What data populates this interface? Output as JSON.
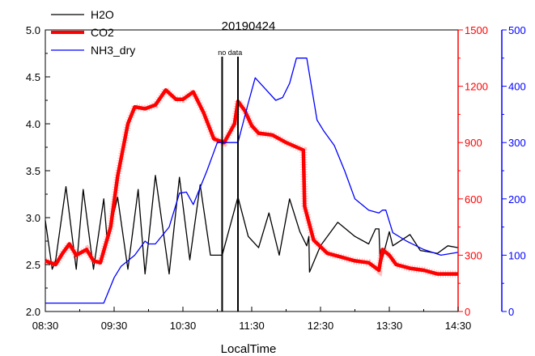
{
  "chart_data": {
    "type": "line",
    "title": "20190424",
    "xlabel": "LocalTime",
    "x_ticks": [
      "08:30",
      "09:30",
      "10:30",
      "11:30",
      "12:30",
      "13:30",
      "14:30"
    ],
    "x_tick_hours": [
      8.5,
      9.5,
      10.5,
      11.5,
      12.5,
      13.5,
      14.5
    ],
    "xlim_hours": [
      8.5,
      14.5
    ],
    "left_axis": {
      "ylim": [
        2.0,
        5.0
      ],
      "ticks": [
        "2.0",
        "2.5",
        "3.0",
        "3.5",
        "4.0",
        "4.5",
        "5.0"
      ],
      "color": "#000000"
    },
    "right_axis_1": {
      "ylim": [
        0,
        1500
      ],
      "ticks": [
        "0",
        "300",
        "600",
        "900",
        "1200",
        "1500"
      ],
      "color": "#ff0000"
    },
    "right_axis_2": {
      "ylim": [
        0,
        500
      ],
      "ticks": [
        "0",
        "100",
        "200",
        "300",
        "400",
        "500"
      ],
      "color": "#0000ff"
    },
    "annotation": {
      "text": "no data",
      "x_hours": [
        11.07,
        11.3
      ]
    },
    "legend_position": "top-left",
    "series": [
      {
        "name": "H2O",
        "axis": "left",
        "color": "#000000",
        "x": [
          8.5,
          8.6,
          8.65,
          8.8,
          8.95,
          9.05,
          9.2,
          9.35,
          9.4,
          9.55,
          9.7,
          9.85,
          9.95,
          10.1,
          10.3,
          10.45,
          10.6,
          10.75,
          10.9,
          11.07,
          11.3,
          11.45,
          11.6,
          11.75,
          11.9,
          12.05,
          12.2,
          12.3,
          12.33,
          12.34,
          12.5,
          12.75,
          13.0,
          13.2,
          13.3,
          13.35,
          13.37,
          13.5,
          13.55,
          13.8,
          13.95,
          14.2,
          14.35,
          14.5
        ],
        "y": [
          2.97,
          2.45,
          2.55,
          3.33,
          2.45,
          3.3,
          2.45,
          3.2,
          2.75,
          3.22,
          2.45,
          3.3,
          2.4,
          3.45,
          2.4,
          3.43,
          2.55,
          3.35,
          2.6,
          2.6,
          3.22,
          2.8,
          2.68,
          3.05,
          2.6,
          3.2,
          2.85,
          2.7,
          2.8,
          2.42,
          2.7,
          2.95,
          2.8,
          2.72,
          2.88,
          2.88,
          2.48,
          2.85,
          2.7,
          2.82,
          2.65,
          2.62,
          2.7,
          2.68
        ]
      },
      {
        "name": "CO2",
        "axis": "right1",
        "color": "#ff0000",
        "x": [
          8.5,
          8.65,
          8.75,
          8.85,
          8.95,
          9.1,
          9.2,
          9.3,
          9.45,
          9.55,
          9.7,
          9.8,
          9.95,
          10.1,
          10.25,
          10.4,
          10.5,
          10.65,
          10.8,
          10.95,
          11.1,
          11.25,
          11.3,
          11.4,
          11.5,
          11.6,
          11.8,
          12.0,
          12.25,
          12.27,
          12.4,
          12.6,
          12.8,
          13.0,
          13.2,
          13.35,
          13.4,
          13.5,
          13.6,
          13.8,
          14.0,
          14.2,
          14.5
        ],
        "y": [
          270,
          250,
          310,
          360,
          300,
          330,
          270,
          260,
          450,
          720,
          1000,
          1090,
          1080,
          1100,
          1180,
          1130,
          1130,
          1170,
          1060,
          920,
          900,
          1000,
          1120,
          1070,
          990,
          950,
          940,
          900,
          860,
          560,
          380,
          310,
          290,
          270,
          260,
          220,
          330,
          300,
          250,
          230,
          220,
          200,
          200
        ]
      },
      {
        "name": "NH3_dry",
        "axis": "right2",
        "color": "#0000ff",
        "x": [
          8.5,
          9.0,
          9.35,
          9.5,
          9.6,
          9.8,
          9.95,
          10.0,
          10.1,
          10.3,
          10.45,
          10.55,
          10.65,
          10.85,
          11.0,
          11.3,
          11.45,
          11.55,
          11.7,
          11.85,
          11.95,
          12.05,
          12.15,
          12.3,
          12.45,
          12.55,
          12.7,
          12.85,
          13.0,
          13.2,
          13.35,
          13.4,
          13.45,
          13.55,
          13.75,
          14.0,
          14.25,
          14.5
        ],
        "y": [
          15,
          15,
          15,
          60,
          80,
          100,
          125,
          120,
          120,
          150,
          210,
          212,
          190,
          250,
          300,
          300,
          370,
          415,
          395,
          375,
          380,
          405,
          450,
          450,
          340,
          320,
          295,
          250,
          200,
          180,
          175,
          180,
          180,
          140,
          125,
          110,
          100,
          105
        ]
      }
    ]
  }
}
